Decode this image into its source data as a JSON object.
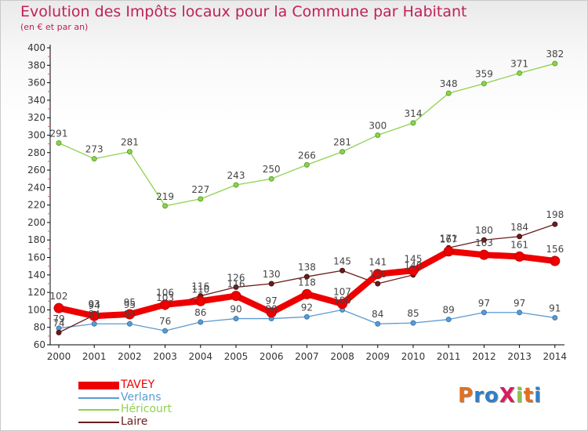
{
  "title": "Evolution des Impôts locaux pour la Commune par Habitant",
  "subtitle": "(en € et par an)",
  "logo": {
    "text": "ProXiti",
    "colors": [
      "#e07020",
      "#2f7fc8",
      "#2f7fc8",
      "#d81b60",
      "#8bc34a",
      "#e07020",
      "#2f7fc8"
    ]
  },
  "chart_data": {
    "type": "line",
    "title": "Evolution des Impôts locaux pour la Commune par Habitant",
    "subtitle": "(en € et par an)",
    "x": [
      "2000",
      "2001",
      "2002",
      "2003",
      "2004",
      "2005",
      "2006",
      "2007",
      "2008",
      "2009",
      "2010",
      "2011",
      "2012",
      "2013",
      "2014"
    ],
    "ylim": [
      60,
      400
    ],
    "yticks": [
      60,
      80,
      100,
      120,
      140,
      160,
      180,
      200,
      220,
      240,
      260,
      280,
      300,
      320,
      340,
      360,
      380,
      400
    ],
    "grid": false,
    "legend_position": "bottom-left",
    "series": [
      {
        "name": "TAVEY",
        "color": "#ee0000",
        "values": [
          102,
          93,
          95,
          106,
          110,
          116,
          97,
          118,
          107,
          141,
          145,
          167,
          163,
          161,
          156
        ]
      },
      {
        "name": "Verlans",
        "color": "#5b9bd1",
        "values": [
          79,
          84,
          84,
          76,
          86,
          90,
          90,
          92,
          100,
          84,
          85,
          89,
          97,
          97,
          91
        ]
      },
      {
        "name": "Héricourt",
        "color": "#8fd14f",
        "values": [
          291,
          273,
          281,
          219,
          227,
          243,
          250,
          266,
          281,
          300,
          314,
          348,
          359,
          371,
          382
        ]
      },
      {
        "name": "Laire",
        "color": "#6b1c1c",
        "values": [
          74,
          94,
          95,
          103,
          116,
          126,
          130,
          138,
          145,
          130,
          140,
          171,
          180,
          184,
          198
        ]
      }
    ],
    "data_labels": {
      "TAVEY": [
        "102",
        "93",
        "95",
        "106",
        "110",
        "116",
        "97",
        "118",
        "107",
        "141",
        "145",
        "167",
        "163",
        "161",
        "156"
      ],
      "Verlans": [
        "79",
        "84",
        "84",
        "76",
        "86",
        "90",
        "90",
        "92",
        "100",
        "84",
        "85",
        "89",
        "97",
        "97",
        "91"
      ],
      "Héricourt": [
        "291",
        "273",
        "281",
        "219",
        "227",
        "243",
        "250",
        "266",
        "281",
        "300",
        "314",
        "348",
        "359",
        "371",
        "382"
      ],
      "Laire": [
        "74",
        "94",
        "95",
        "103",
        "116",
        "126",
        "130",
        "138",
        "145",
        "130",
        "140",
        "171",
        "180",
        "184",
        "198"
      ]
    }
  }
}
